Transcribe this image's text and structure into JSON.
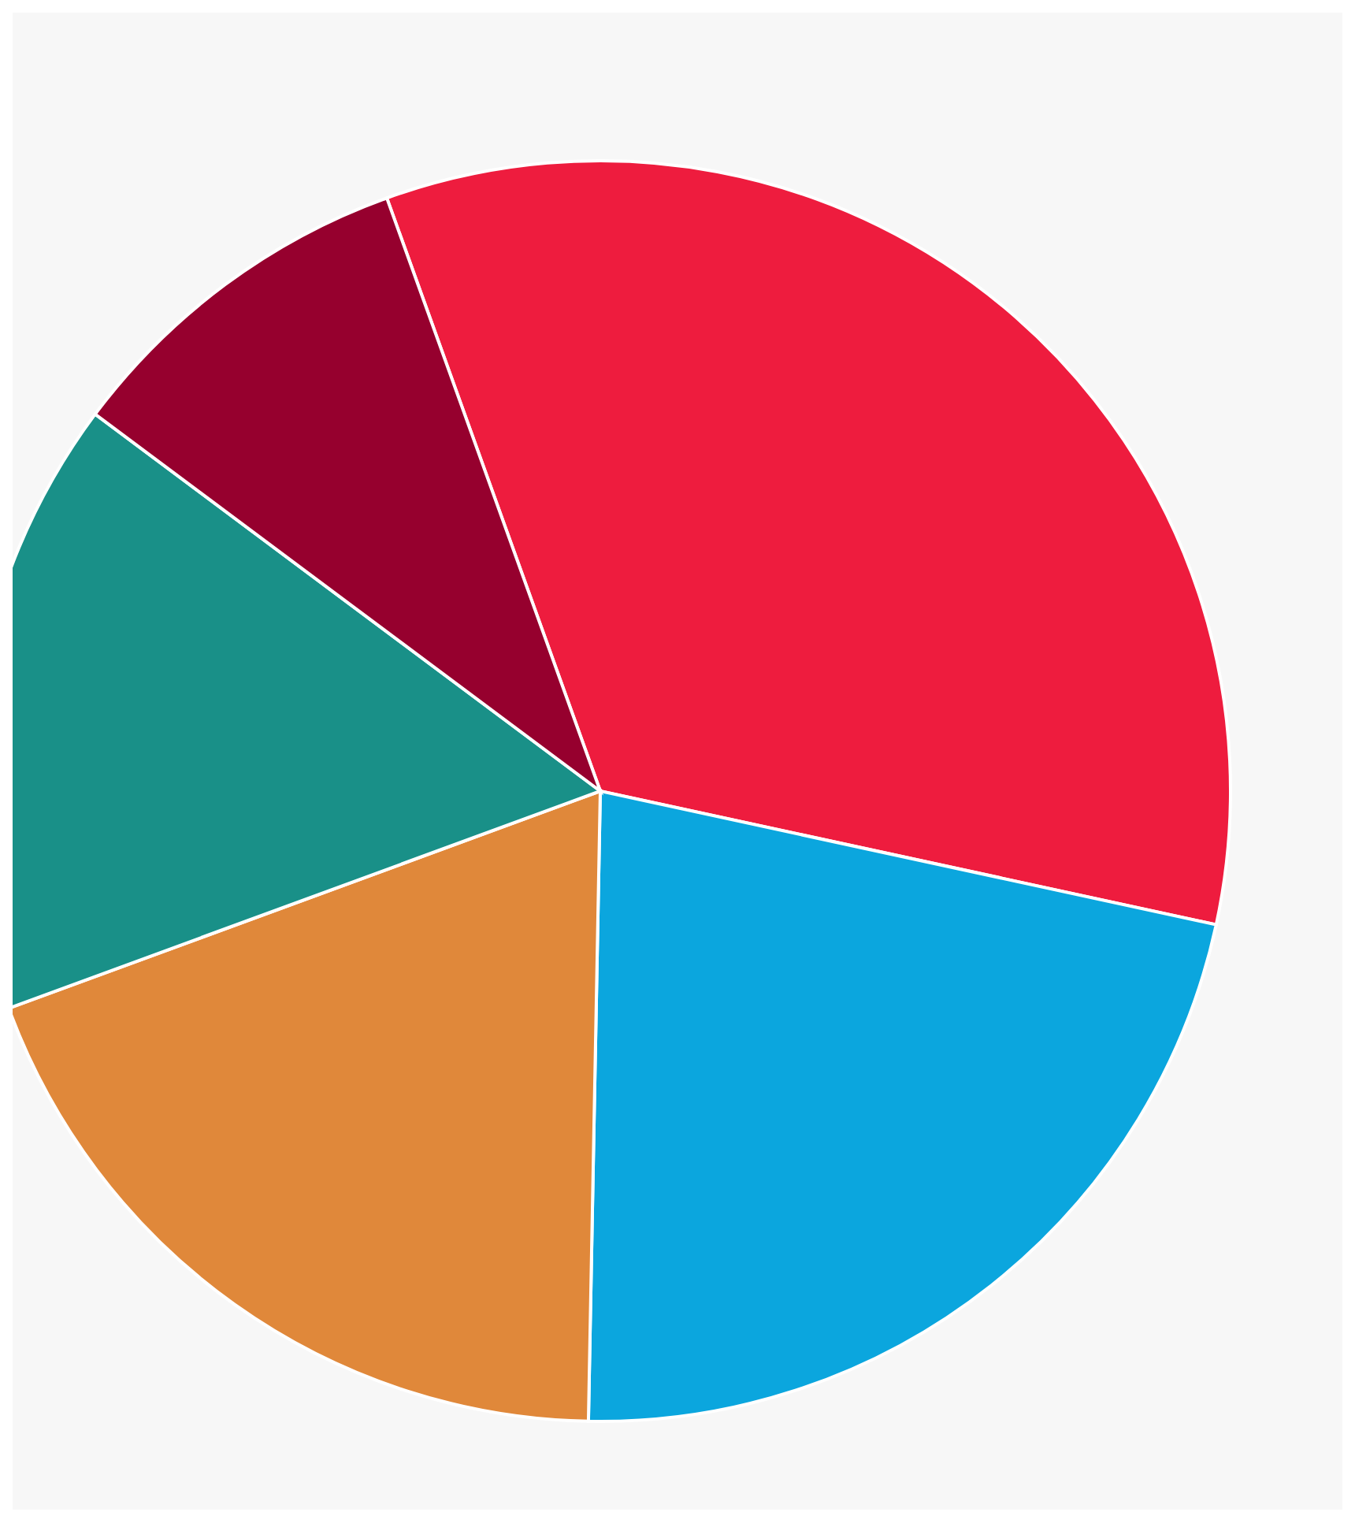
{
  "chart_data": {
    "type": "pie",
    "categories": [
      null,
      null,
      null,
      null,
      null
    ],
    "values": [
      33.9,
      21.9,
      19.1,
      15.8,
      9.3
    ],
    "colors": [
      "#ee1c3e",
      "#0ba6de",
      "#e0883a",
      "#199088",
      "#96002e"
    ]
  }
}
